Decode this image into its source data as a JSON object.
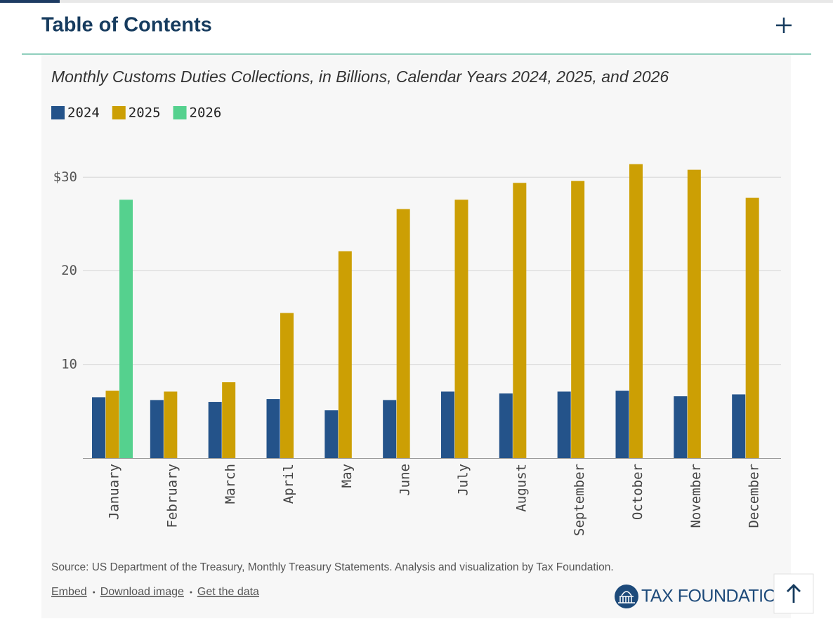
{
  "header": {
    "title": "Table of Contents"
  },
  "chart_data": {
    "type": "bar",
    "title": "Monthly Customs Duties Collections, in Billions, Calendar Years 2024, 2025, and 2026",
    "categories": [
      "January",
      "February",
      "March",
      "April",
      "May",
      "June",
      "July",
      "August",
      "September",
      "October",
      "November",
      "December"
    ],
    "series": [
      {
        "name": "2024",
        "color": "#24538a",
        "values": [
          6.5,
          6.2,
          6.0,
          6.3,
          5.1,
          6.2,
          7.1,
          6.9,
          7.1,
          7.2,
          6.6,
          6.8
        ]
      },
      {
        "name": "2025",
        "color": "#cc9f04",
        "values": [
          7.2,
          7.1,
          8.1,
          15.5,
          22.1,
          26.6,
          27.6,
          29.4,
          29.6,
          31.4,
          30.8,
          27.8
        ]
      },
      {
        "name": "2026",
        "color": "#55d18e",
        "values": [
          27.6,
          null,
          null,
          null,
          null,
          null,
          null,
          null,
          null,
          null,
          null,
          null
        ]
      }
    ],
    "ylim": [
      0,
      34
    ],
    "yticks": [
      10,
      20,
      {
        "value": 30,
        "label": "$30"
      }
    ],
    "grid": true
  },
  "footer": {
    "source": "Source: US Department of the Treasury, Monthly Treasury Statements. Analysis and visualization by Tax Foundation.",
    "links": [
      "Embed",
      "Download image",
      "Get the data"
    ],
    "logo": "TAX FOUNDATION"
  }
}
